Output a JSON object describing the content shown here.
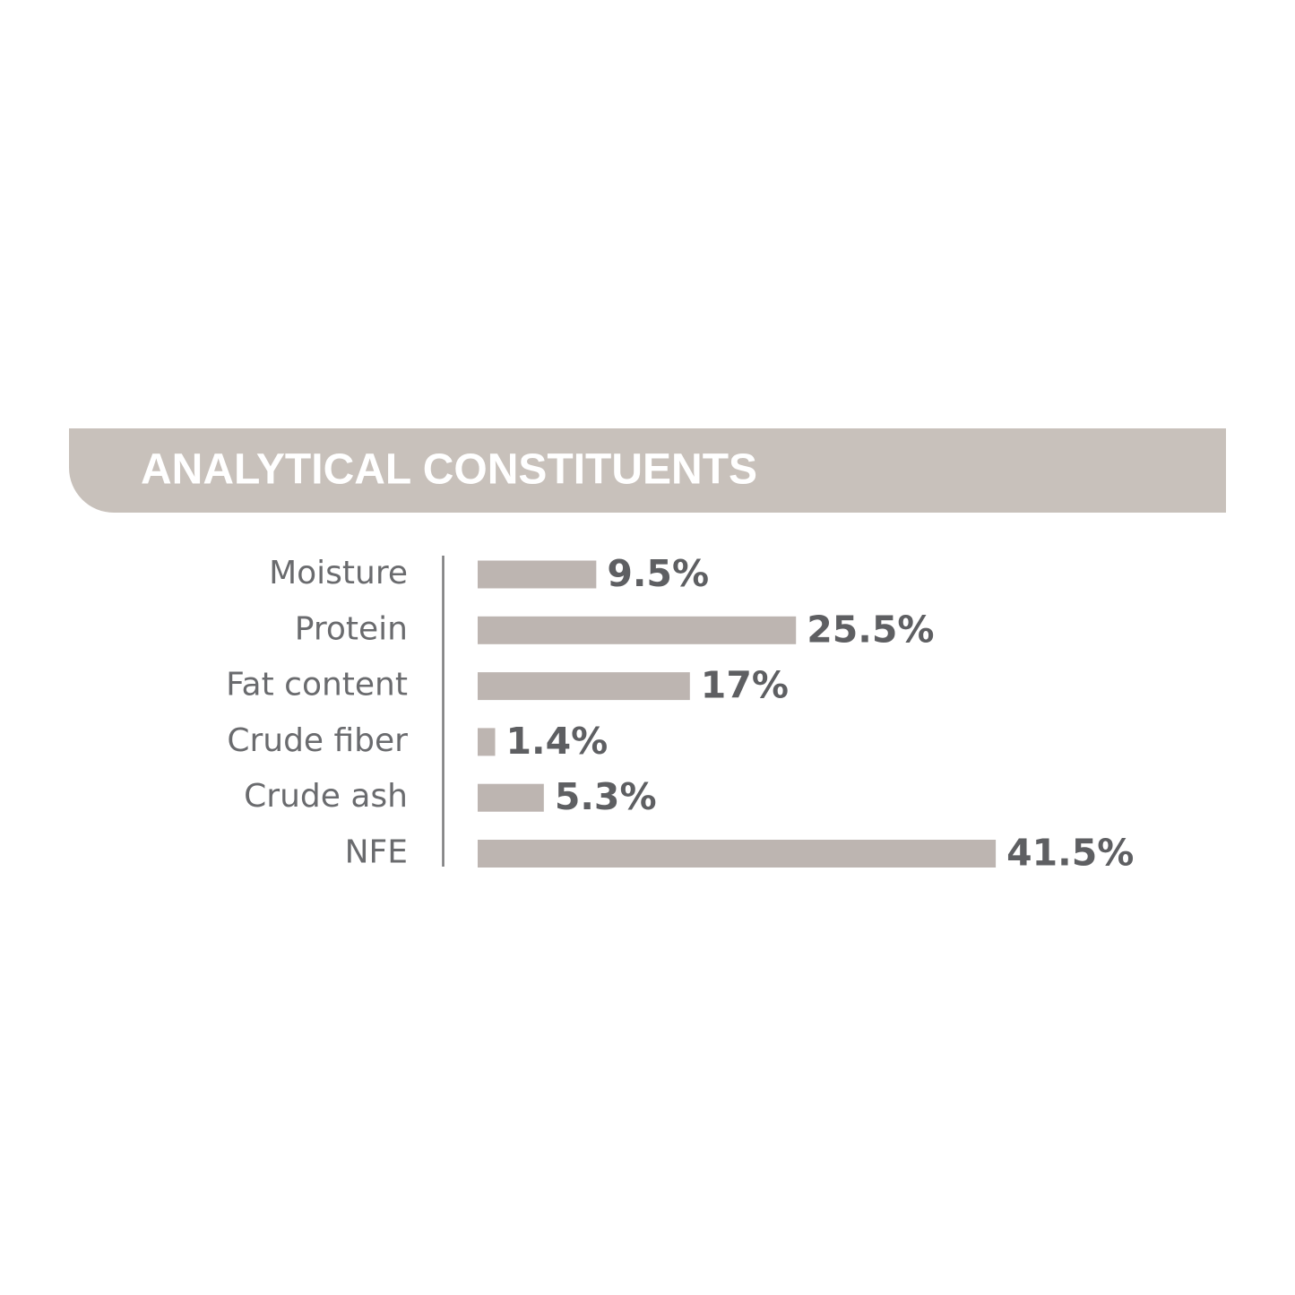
{
  "chart_data": {
    "type": "bar",
    "orientation": "horizontal",
    "title": "ANALYTICAL CONSTITUENTS",
    "categories": [
      "Moisture",
      "Protein",
      "Fat content",
      "Crude fiber",
      "Crude ash",
      "NFE"
    ],
    "values": [
      9.5,
      25.5,
      17,
      1.4,
      5.3,
      41.5
    ],
    "value_labels": [
      "9.5%",
      "25.5%",
      "17%",
      "1.4%",
      "5.3%",
      "41.5%"
    ],
    "color": "#bdb5b1"
  }
}
